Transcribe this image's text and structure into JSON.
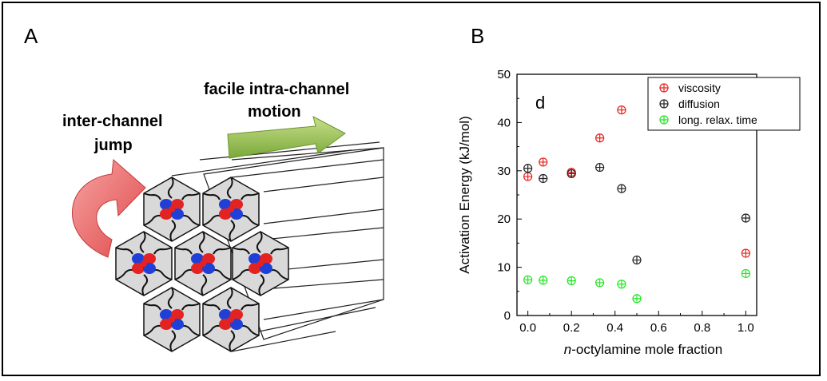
{
  "panel_a": {
    "label": "A",
    "inter_channel_text": [
      "inter-channel",
      "jump"
    ],
    "intra_channel_text": [
      "facile intra-channel",
      "motion"
    ]
  },
  "panel_b": {
    "label": "B",
    "inset_label": "d"
  },
  "chart_data": {
    "type": "scatter",
    "xlabel_prefix": "n",
    "xlabel_rest": "-octylamine mole fraction",
    "ylabel": "Activation Energy (kJ/mol)",
    "xlim": [
      -0.05,
      1.05
    ],
    "ylim": [
      0,
      50
    ],
    "xticks": [
      0.0,
      0.2,
      0.4,
      0.6,
      0.8,
      1.0
    ],
    "xtick_labels": [
      "0.0",
      "0.2",
      "0.4",
      "0.6",
      "0.8",
      "1.0"
    ],
    "yticks": [
      0,
      10,
      20,
      30,
      40,
      50
    ],
    "ytick_labels": [
      "0",
      "10",
      "20",
      "30",
      "40",
      "50"
    ],
    "legend_position": "top-right",
    "series": [
      {
        "name": "viscosity",
        "color": "#e8211c",
        "points": [
          [
            0.0,
            28.8
          ],
          [
            0.07,
            31.8
          ],
          [
            0.2,
            29.7
          ],
          [
            0.33,
            36.8
          ],
          [
            0.43,
            42.6
          ],
          [
            1.0,
            12.9
          ]
        ]
      },
      {
        "name": "diffusion",
        "color": "#222222",
        "points": [
          [
            0.0,
            30.5
          ],
          [
            0.07,
            28.4
          ],
          [
            0.2,
            29.4
          ],
          [
            0.33,
            30.7
          ],
          [
            0.43,
            26.3
          ],
          [
            0.5,
            11.5
          ],
          [
            1.0,
            20.2
          ]
        ]
      },
      {
        "name": "long. relax. time",
        "color": "#1ee81e",
        "points": [
          [
            0.0,
            7.4
          ],
          [
            0.07,
            7.3
          ],
          [
            0.2,
            7.2
          ],
          [
            0.33,
            6.8
          ],
          [
            0.43,
            6.5
          ],
          [
            0.5,
            3.5
          ],
          [
            1.0,
            8.7
          ]
        ]
      }
    ]
  }
}
